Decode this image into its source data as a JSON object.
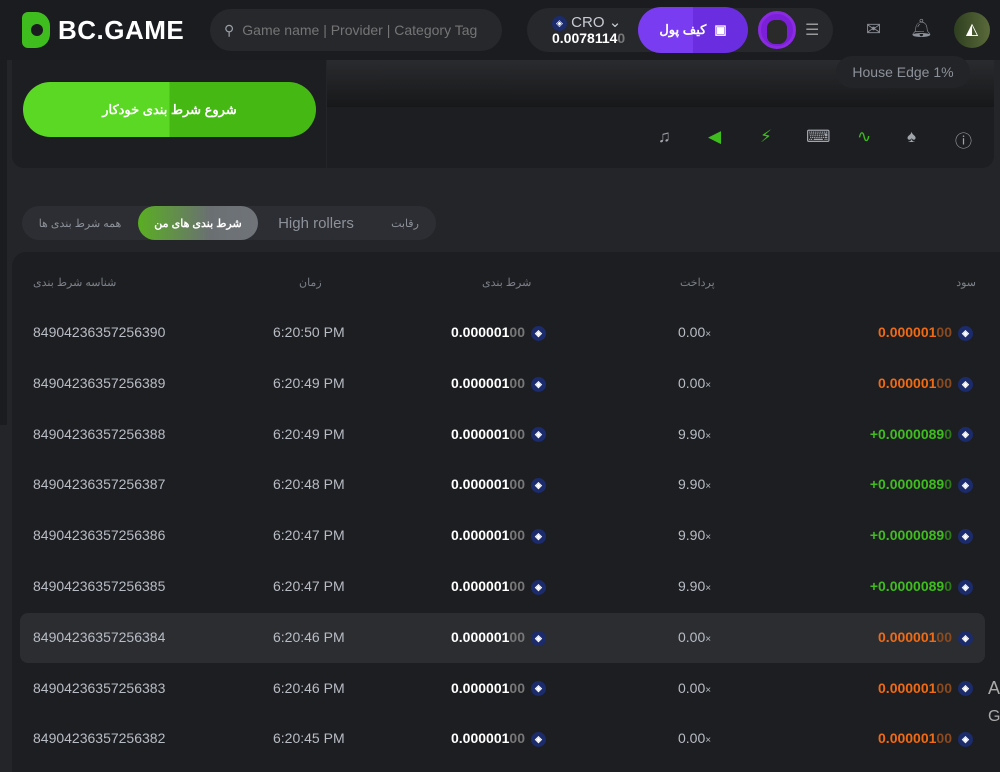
{
  "header": {
    "logo": "BC.GAME",
    "search_placeholder": "Game name | Provider | Category Tag",
    "currency": "CRO",
    "balance_main": "0.0078114",
    "balance_dim": "0",
    "wallet_label": "کیف پول",
    "icons": [
      "search-icon",
      "chevron-down-icon",
      "wallet-icon",
      "menu-icon",
      "mail-icon",
      "bell-icon",
      "avatar"
    ]
  },
  "game": {
    "auto_bet_label": "شروع شرط بندی خودکار",
    "house_edge": "House Edge 1%",
    "tools": [
      "music-off-icon",
      "sound-icon",
      "lightning-icon",
      "keyboard-icon",
      "chart-icon",
      "acorn-icon",
      "help-icon"
    ]
  },
  "tabs": [
    {
      "label": "همه شرط بندی ها",
      "active": false
    },
    {
      "label": "شرط بندی های من",
      "active": true
    },
    {
      "label": "High rollers",
      "active": false
    },
    {
      "label": "رقابت",
      "active": false
    }
  ],
  "table": {
    "headers": {
      "id": "شناسه شرط بندی",
      "time": "زمان",
      "bet": "شرط بندی",
      "payout": "پرداخت",
      "profit": "سود"
    },
    "rows": [
      {
        "id": "84904236357256390",
        "time": "6:20:50 PM",
        "bet": "0.000001",
        "bet_dim": "00",
        "payout": "0.00",
        "profit": "0.000001",
        "profit_dim": "00",
        "win": false
      },
      {
        "id": "84904236357256389",
        "time": "6:20:49 PM",
        "bet": "0.000001",
        "bet_dim": "00",
        "payout": "0.00",
        "profit": "0.000001",
        "profit_dim": "00",
        "win": false
      },
      {
        "id": "84904236357256388",
        "time": "6:20:49 PM",
        "bet": "0.000001",
        "bet_dim": "00",
        "payout": "9.90",
        "profit": "+0.0000089",
        "profit_dim": "0",
        "win": true
      },
      {
        "id": "84904236357256387",
        "time": "6:20:48 PM",
        "bet": "0.000001",
        "bet_dim": "00",
        "payout": "9.90",
        "profit": "+0.0000089",
        "profit_dim": "0",
        "win": true
      },
      {
        "id": "84904236357256386",
        "time": "6:20:47 PM",
        "bet": "0.000001",
        "bet_dim": "00",
        "payout": "9.90",
        "profit": "+0.0000089",
        "profit_dim": "0",
        "win": true
      },
      {
        "id": "84904236357256385",
        "time": "6:20:47 PM",
        "bet": "0.000001",
        "bet_dim": "00",
        "payout": "9.90",
        "profit": "+0.0000089",
        "profit_dim": "0",
        "win": true
      },
      {
        "id": "84904236357256384",
        "time": "6:20:46 PM",
        "bet": "0.000001",
        "bet_dim": "00",
        "payout": "0.00",
        "profit": "0.000001",
        "profit_dim": "00",
        "win": false
      },
      {
        "id": "84904236357256383",
        "time": "6:20:46 PM",
        "bet": "0.000001",
        "bet_dim": "00",
        "payout": "0.00",
        "profit": "0.000001",
        "profit_dim": "00",
        "win": false
      },
      {
        "id": "84904236357256382",
        "time": "6:20:45 PM",
        "bet": "0.000001",
        "bet_dim": "00",
        "payout": "0.00",
        "profit": "0.000001",
        "profit_dim": "00",
        "win": false
      }
    ],
    "payout_suffix": "×"
  },
  "overflow_fragments": [
    "A",
    "G"
  ],
  "colors": {
    "accent": "#3fbd1f",
    "wallet": "#7a3cf0",
    "loss": "#f06a14",
    "win": "#3fbd1f"
  }
}
